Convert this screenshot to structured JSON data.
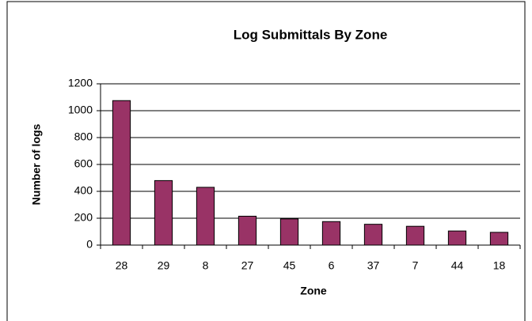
{
  "chart_data": {
    "type": "bar",
    "title": "Log Submittals By Zone",
    "x_label": "Zone",
    "y_label": "Number of logs",
    "categories": [
      "28",
      "29",
      "8",
      "27",
      "45",
      "6",
      "37",
      "7",
      "44",
      "18"
    ],
    "values": [
      1075,
      480,
      430,
      215,
      195,
      175,
      155,
      140,
      105,
      95
    ],
    "color": "#993366",
    "ylim": [
      0,
      1200
    ],
    "yticks": [
      0,
      200,
      400,
      600,
      800,
      1000,
      1200
    ],
    "grid": true
  }
}
